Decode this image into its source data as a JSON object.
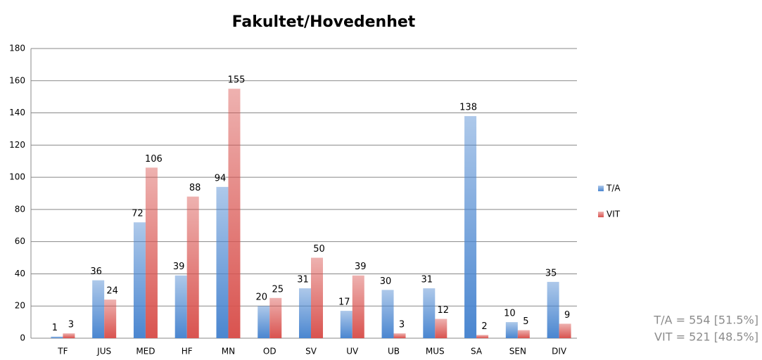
{
  "chart_data": {
    "type": "bar",
    "title": "Fakultet/Hovedenhet",
    "categories": [
      "TF",
      "JUS",
      "MED",
      "HF",
      "MN",
      "OD",
      "SV",
      "UV",
      "UB",
      "MUS",
      "SA",
      "SEN",
      "DIV"
    ],
    "series": [
      {
        "name": "T/A",
        "color": "#4a86d0",
        "values": [
          1,
          36,
          72,
          39,
          94,
          20,
          31,
          17,
          30,
          31,
          138,
          10,
          35
        ]
      },
      {
        "name": "VIT",
        "color": "#d9534f",
        "values": [
          3,
          24,
          106,
          88,
          155,
          25,
          50,
          39,
          3,
          12,
          2,
          5,
          9
        ]
      }
    ],
    "ylim": [
      0,
      180
    ],
    "yticks": [
      0,
      20,
      40,
      60,
      80,
      100,
      120,
      140,
      160,
      180
    ],
    "grid": true,
    "legend": "right",
    "annotations": [
      "T/A = 554 [51.5%]",
      "VIT = 521 [48.5%]"
    ]
  }
}
